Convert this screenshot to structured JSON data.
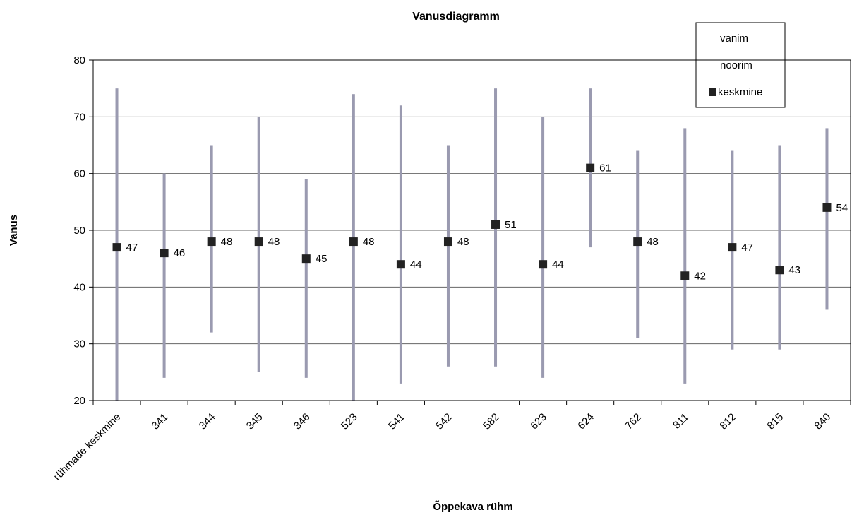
{
  "chart_data": {
    "type": "scatter",
    "title": "Vanusdiagramm",
    "xlabel": "Õppekava rühm",
    "ylabel": "Vanus",
    "ylim": [
      20,
      80
    ],
    "yticks": [
      20,
      30,
      40,
      50,
      60,
      70,
      80
    ],
    "grid": true,
    "legend_position": "top-right",
    "categories": [
      "rühmade keskmine",
      "341",
      "344",
      "345",
      "346",
      "523",
      "541",
      "542",
      "582",
      "623",
      "624",
      "762",
      "811",
      "812",
      "815",
      "840"
    ],
    "series": [
      {
        "name": "vanim",
        "values": [
          75,
          60,
          65,
          70,
          59,
          74,
          72,
          65,
          75,
          70,
          75,
          64,
          68,
          64,
          65,
          68
        ]
      },
      {
        "name": "noorim",
        "values": [
          20,
          24,
          32,
          25,
          24,
          20,
          23,
          26,
          26,
          24,
          47,
          31,
          23,
          29,
          29,
          36
        ]
      },
      {
        "name": "keskmine",
        "values": [
          47,
          46,
          48,
          48,
          45,
          48,
          44,
          48,
          51,
          44,
          61,
          48,
          42,
          47,
          43,
          54
        ]
      }
    ],
    "colors": {
      "range_bar": "#9a9ab0",
      "marker": "#222222",
      "grid": "#666666"
    }
  }
}
